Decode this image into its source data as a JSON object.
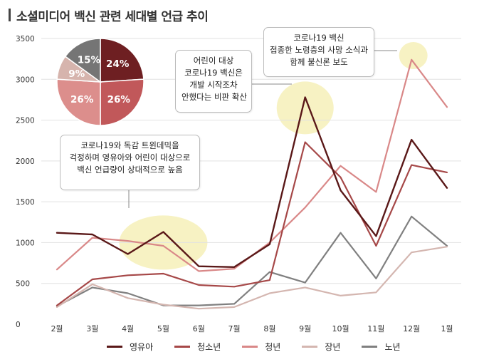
{
  "title": "소셜미디어 백신 관련  세대별 언급 추이",
  "chart_data": {
    "type": "line",
    "categories": [
      "2월",
      "3월",
      "4월",
      "5월",
      "6월",
      "7월",
      "8월",
      "9월",
      "10월",
      "11월",
      "12월",
      "1월"
    ],
    "yticks": [
      "3500",
      "3000",
      "2500",
      "2000",
      "1500",
      "1000",
      "500",
      "0"
    ],
    "ylim": [
      0,
      3500
    ],
    "grid": true,
    "legend_position": "bottom",
    "series": [
      {
        "name": "영유아",
        "color": "#5a1818",
        "width": 2.4,
        "values": [
          1120,
          1100,
          860,
          1130,
          710,
          700,
          980,
          2780,
          1640,
          1080,
          2260,
          1670
        ]
      },
      {
        "name": "청소년",
        "color": "#a64848",
        "width": 2.2,
        "values": [
          230,
          550,
          600,
          620,
          480,
          460,
          540,
          2230,
          1800,
          960,
          1950,
          1860
        ]
      },
      {
        "name": "청년",
        "color": "#d98888",
        "width": 2.2,
        "values": [
          670,
          1060,
          1020,
          960,
          650,
          680,
          1000,
          1430,
          1940,
          1620,
          3240,
          2660
        ]
      },
      {
        "name": "장년",
        "color": "#d4b6b0",
        "width": 2.2,
        "values": [
          210,
          490,
          320,
          240,
          190,
          210,
          380,
          450,
          350,
          390,
          880,
          950
        ]
      },
      {
        "name": "노년",
        "color": "#808080",
        "width": 2.2,
        "values": [
          220,
          450,
          380,
          230,
          230,
          250,
          640,
          510,
          1120,
          560,
          1320,
          960
        ]
      }
    ],
    "pie": {
      "slices": [
        {
          "label": "24%",
          "value": 24,
          "color": "#6e1f22"
        },
        {
          "label": "26%",
          "value": 26,
          "color": "#c1585a"
        },
        {
          "label": "26%",
          "value": 26,
          "color": "#dc8e8c"
        },
        {
          "label": "9%",
          "value": 9,
          "color": "#d6b4ad"
        },
        {
          "label": "15%",
          "value": 15,
          "color": "#757575"
        }
      ]
    },
    "annotations": [
      {
        "lines": [
          "코로나19와 독감 트윈데믹을",
          "걱정하며 영유아와 어린이 대상으로",
          "백신 언급량이 상대적으로 높음"
        ]
      },
      {
        "lines": [
          "어린이 대상",
          "코로나19 백신은",
          "개발 시작조차",
          "안했다는 비판 확산"
        ]
      },
      {
        "lines": [
          "코로나19 백신",
          "접종한 노령층의 사망 소식과",
          "함께 불신론 보도"
        ]
      }
    ]
  }
}
